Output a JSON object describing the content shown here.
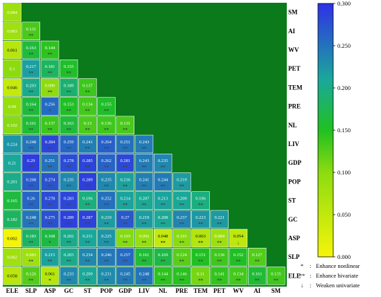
{
  "chart_data": {
    "type": "heatmap",
    "x_labels": [
      "ELE",
      "SLP",
      "ASP",
      "GC",
      "ST",
      "POP",
      "GDP",
      "LIV",
      "NL",
      "PRE",
      "TEM",
      "PET",
      "WV",
      "AI",
      "SM"
    ],
    "y_labels": [
      "SM",
      "AI",
      "WV",
      "PET",
      "TEM",
      "PRE",
      "NL",
      "LIV",
      "GDP",
      "POP",
      "ST",
      "GC",
      "ASP",
      "SLP",
      "ELE"
    ],
    "rows": [
      {
        "label": "SM",
        "values": [
          "0.084"
        ],
        "marks": [
          ""
        ]
      },
      {
        "label": "AI",
        "values": [
          "0.083",
          "0.131"
        ],
        "marks": [
          "",
          "**"
        ]
      },
      {
        "label": "WV",
        "values": [
          "0.061",
          "0.163",
          "0.144"
        ],
        "marks": [
          "",
          "**",
          "**"
        ]
      },
      {
        "label": "PET",
        "values": [
          "0.1",
          "0.217",
          "0.181",
          "0.155"
        ],
        "marks": [
          "",
          "**",
          "**",
          "**"
        ]
      },
      {
        "label": "TEM",
        "values": [
          "0.046",
          "0.203",
          "0.099",
          "0.189",
          "0.137"
        ],
        "marks": [
          "",
          "**",
          "**",
          "**",
          "**"
        ]
      },
      {
        "label": "PRE",
        "values": [
          "0.09",
          "0.164",
          "0.256",
          "0.153",
          "0.134",
          "0.155"
        ],
        "marks": [
          "",
          "**",
          "*",
          "**",
          "**",
          "**"
        ]
      },
      {
        "label": "NL",
        "values": [
          "0.102",
          "0.161",
          "0.137",
          "0.163",
          "0.13",
          "0.136",
          "0.131"
        ],
        "marks": [
          "",
          "**",
          "**",
          "**",
          "**",
          "**",
          "**"
        ]
      },
      {
        "label": "LIV",
        "values": [
          "0.224",
          "0.248",
          "0.284",
          "0.259",
          "0.241",
          "0.264",
          "0.251",
          "0.243"
        ],
        "marks": [
          "",
          "**",
          "**",
          "**",
          "**",
          "**",
          "**",
          "**"
        ]
      },
      {
        "label": "GDP",
        "values": [
          "0.21",
          "0.29",
          "0.251",
          "0.278",
          "0.285",
          "0.262",
          "0.281",
          "0.243",
          "0.235"
        ],
        "marks": [
          "",
          "**",
          "**",
          "**",
          "**",
          "**",
          "**",
          "**",
          "**"
        ]
      },
      {
        "label": "POP",
        "values": [
          "0.201",
          "0.268",
          "0.274",
          "0.235",
          "0.289",
          "0.235",
          "0.216",
          "0.241",
          "0.244",
          "0.219"
        ],
        "marks": [
          "",
          "**",
          "**",
          "**",
          "**",
          "**",
          "**",
          "**",
          "**",
          "**"
        ]
      },
      {
        "label": "ST",
        "values": [
          "0.165",
          "0.26",
          "0.278",
          "0.283",
          "0.196",
          "0.252",
          "0.214",
          "0.207",
          "0.213",
          "0.209",
          "0.196"
        ],
        "marks": [
          "",
          "**",
          "**",
          "**",
          "**",
          "**",
          "**",
          "**",
          "**",
          "**",
          "**"
        ]
      },
      {
        "label": "GC",
        "values": [
          "0.182",
          "0.248",
          "0.275",
          "0.289",
          "0.287",
          "0.219",
          "0.27",
          "0.219",
          "0.208",
          "0.237",
          "0.223",
          "0.221"
        ],
        "marks": [
          "",
          "**",
          "**",
          "**",
          "**",
          "**",
          "**",
          "**",
          "**",
          "**",
          "**",
          "**"
        ]
      },
      {
        "label": "ASP",
        "values": [
          "0.002",
          "0.183",
          "0.168",
          "0.202",
          "0.211",
          "0.225",
          "0.103",
          "0.092",
          "0.048",
          "0.101",
          "0.063",
          "0.084",
          "0.054"
        ],
        "marks": [
          "",
          "**",
          "*",
          "**",
          "**",
          "**",
          "**",
          "**",
          "**",
          "**",
          "**",
          "**",
          "↓"
        ]
      },
      {
        "label": "SLP",
        "values": [
          "0.082",
          "0.083",
          "0.215",
          "0.203",
          "0.234",
          "0.246",
          "0.257",
          "0.161",
          "0.169",
          "0.124",
          "0.151",
          "0.136",
          "0.152",
          "0.127"
        ],
        "marks": [
          "",
          "**",
          "**",
          "**",
          "**",
          "**",
          "**",
          "**",
          "**",
          "**",
          "**",
          "**",
          "**",
          "**"
        ]
      },
      {
        "label": "ELE",
        "values": [
          "0.058",
          "0.126",
          "0.061",
          "0.233",
          "0.209",
          "0.231",
          "0.245",
          "0.248",
          "0.144",
          "0.146",
          "0.11",
          "0.141",
          "0.134",
          "0.161",
          "0.135"
        ],
        "marks": [
          "",
          "**",
          "*",
          "**",
          "**",
          "**",
          "**",
          "**",
          "**",
          "**",
          "**",
          "**",
          "**",
          "**",
          "**"
        ]
      }
    ],
    "colorbar": {
      "min": 0,
      "max": 0.3,
      "ticks": [
        "0.000",
        "0.050",
        "0.100",
        "0.150",
        "0.200",
        "0.250",
        "0.300"
      ],
      "colors": {
        "low": "#f5f50a",
        "mid": "#20c020",
        "high": "#3030e6"
      }
    },
    "legend": [
      {
        "symbol": "*",
        "text": "Enhance  nonlinear"
      },
      {
        "symbol": "**",
        "text": "Enhance  bivariate"
      },
      {
        "symbol": "↓",
        "text": "Weaken  univariate"
      }
    ],
    "background_color": "#0a7a1a",
    "grid": true
  }
}
